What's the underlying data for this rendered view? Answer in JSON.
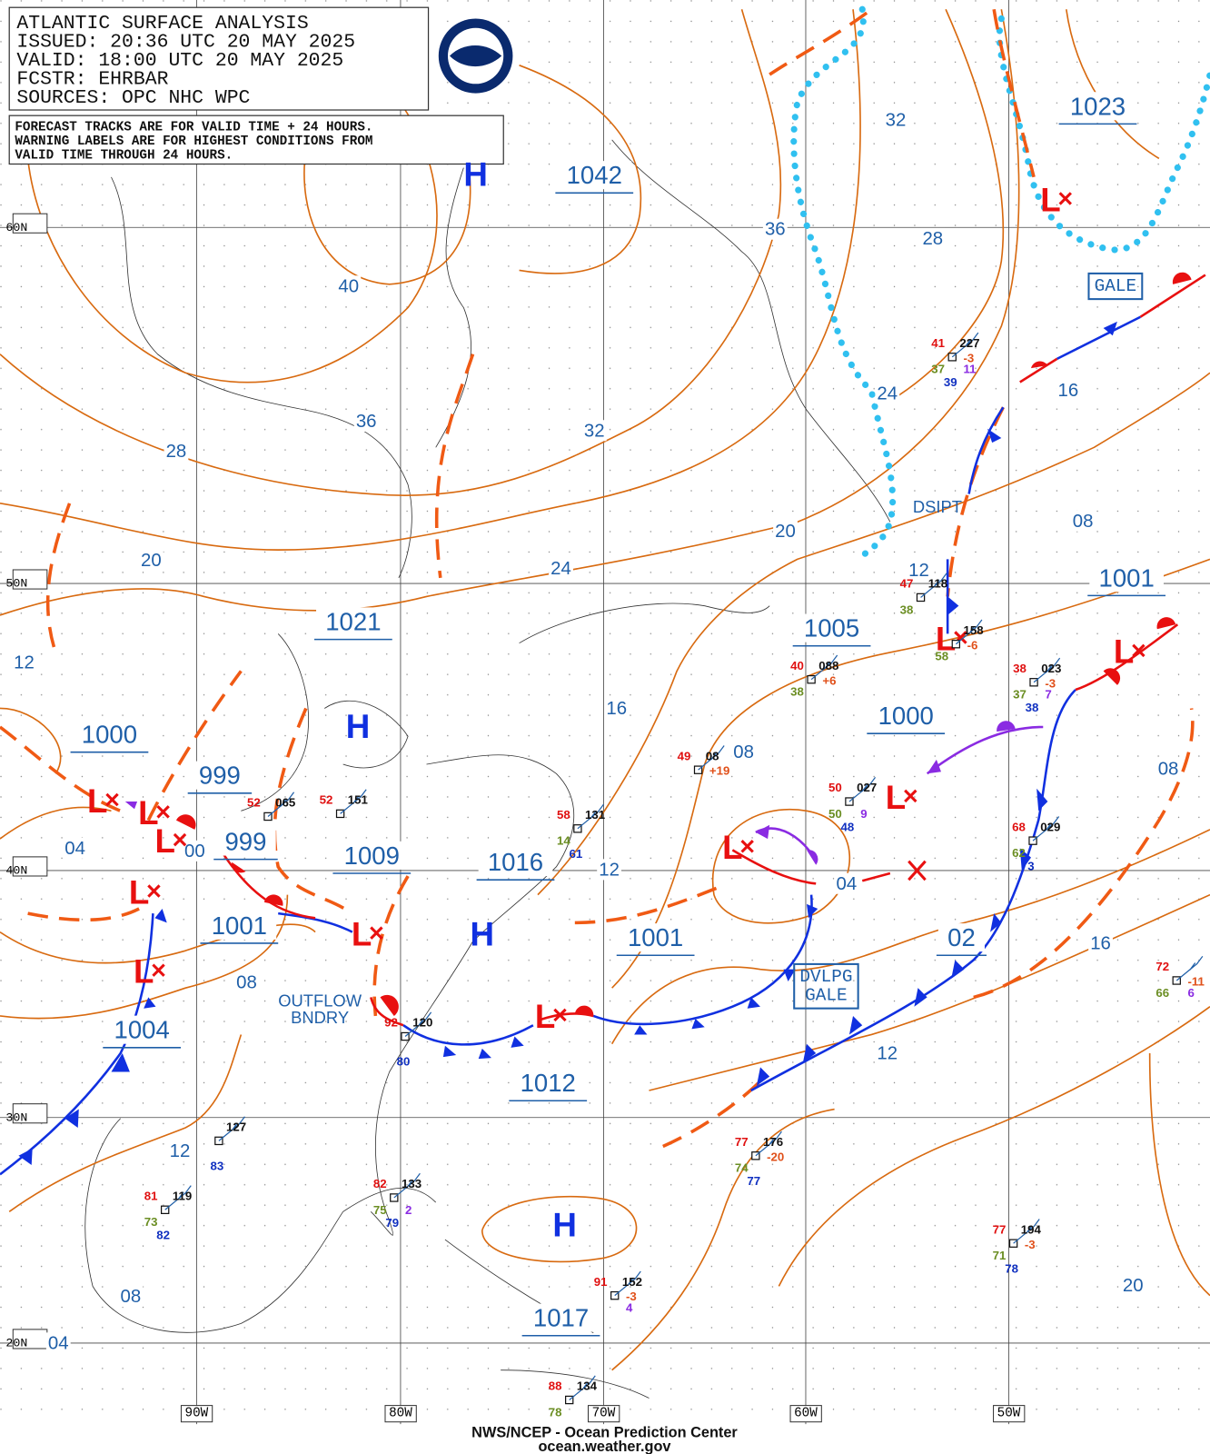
{
  "header": {
    "title": "ATLANTIC SURFACE ANALYSIS",
    "lines": [
      "ISSUED: 20:36 UTC 20 MAY 2025",
      "VALID:  18:00 UTC 20 MAY 2025",
      "FCSTR:  EHRBAR",
      "SOURCES: OPC NHC WPC"
    ]
  },
  "notice": [
    "FORECAST TRACKS ARE FOR VALID TIME + 24 HOURS.",
    "WARNING LABELS ARE FOR HIGHEST CONDITIONS FROM",
    "VALID TIME THROUGH 24 HOURS."
  ],
  "latitudes": [
    "60N",
    "50N",
    "40N",
    "30N",
    "20N"
  ],
  "longitudes": [
    "90W",
    "80W",
    "70W",
    "60W",
    "50W"
  ],
  "isobar_labels": [
    "32",
    "36",
    "28",
    "40",
    "36",
    "32",
    "28",
    "24",
    "16",
    "20",
    "08",
    "20",
    "24",
    "12",
    "12",
    "16",
    "08",
    "08",
    "04",
    "00",
    "12",
    "04",
    "16",
    "08",
    "12",
    "12",
    "08",
    "04",
    "20"
  ],
  "centers": [
    "1042",
    "1023",
    "1001",
    "1005",
    "1021",
    "1000",
    "1000",
    "999",
    "999",
    "1009",
    "1016",
    "1001",
    "02",
    "1001",
    "1004",
    "1012",
    "1017"
  ],
  "highs": [
    "H",
    "H",
    "H",
    "H"
  ],
  "lows": [
    "L",
    "L",
    "L",
    "L",
    "L",
    "L",
    "L",
    "L",
    "L",
    "L",
    "L",
    "L"
  ],
  "warnings": [
    "GALE",
    "DVLPG",
    "GALE"
  ],
  "notes": [
    "DSIPT",
    "OUTFLOW",
    "BNDRY"
  ],
  "stations": [
    {
      "t": "41",
      "p": "227",
      "dt": "-3",
      "td": "37",
      "w": "11",
      "s": "39"
    },
    {
      "t": "40",
      "p": "088",
      "dt": "+6",
      "td": "38"
    },
    {
      "t": "47",
      "p": "118",
      "td": "38"
    },
    {
      "p": "158",
      "dt": "-6",
      "td": "58"
    },
    {
      "t": "38",
      "p": "023",
      "dt": "-3",
      "td": "37",
      "w": "7",
      "s": "38"
    },
    {
      "t": "49",
      "p": "08",
      "dt": "+19"
    },
    {
      "t": "50",
      "p": "027",
      "td": "50",
      "w": "9",
      "s": "48"
    },
    {
      "t": "58",
      "p": "131",
      "td": "14",
      "s": "61"
    },
    {
      "t": "68",
      "p": "029",
      "td": "62",
      "s": "3"
    },
    {
      "t": "52",
      "p": "065"
    },
    {
      "t": "52",
      "p": "151"
    },
    {
      "t": "72",
      "dt": "-11",
      "td": "66",
      "w": "6"
    },
    {
      "t": "77",
      "p": "176",
      "dt": "-20",
      "td": "74",
      "s": "77"
    },
    {
      "t": "82",
      "p": "133",
      "td": "75",
      "w": "2",
      "s": "79"
    },
    {
      "t": "81",
      "p": "119",
      "td": "73",
      "s": "82"
    },
    {
      "p": "127",
      "s": "83"
    },
    {
      "t": "77",
      "p": "194",
      "dt": "-3",
      "td": "71",
      "s": "78"
    },
    {
      "t": "92",
      "p": "120",
      "s": "80"
    },
    {
      "t": "91",
      "p": "152",
      "dt": "-3",
      "w": "4"
    },
    {
      "t": "88",
      "p": "134",
      "td": "78"
    }
  ],
  "footer": [
    "NWS/NCEP - Ocean Prediction Center",
    "ocean.weather.gov"
  ]
}
